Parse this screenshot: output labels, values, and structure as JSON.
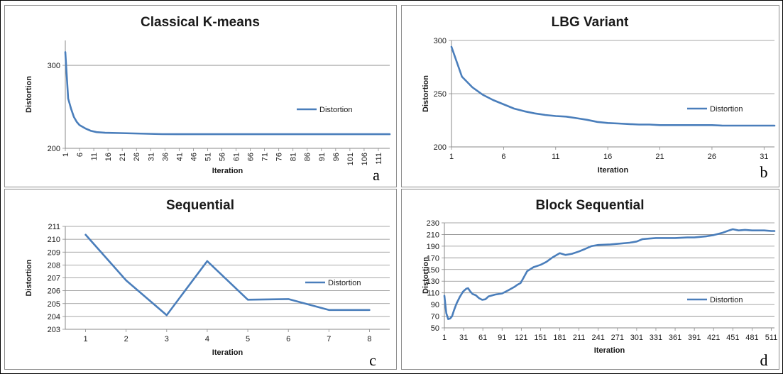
{
  "chart_data": [
    {
      "type": "line",
      "panel": "a",
      "title": "Classical K-means",
      "xlabel": "Iteration",
      "ylabel": "Distortion",
      "y_ticks": [
        "300",
        "200"
      ],
      "x_tick_labels": [
        "1",
        "6",
        "11",
        "16",
        "21",
        "26",
        "31",
        "36",
        "41",
        "46",
        "51",
        "56",
        "61",
        "66",
        "71",
        "76",
        "81",
        "86",
        "91",
        "96",
        "101",
        "106",
        "111"
      ],
      "ylim": [
        200,
        330
      ],
      "xlim": [
        1,
        115
      ],
      "grid": true,
      "legend": "right",
      "series": [
        {
          "name": "Distortion",
          "color": "#4a7ebb",
          "points": [
            [
              1,
              316
            ],
            [
              2,
              260
            ],
            [
              3,
              248
            ],
            [
              4,
              238
            ],
            [
              5,
              232
            ],
            [
              6,
              228
            ],
            [
              8,
              224
            ],
            [
              10,
              221
            ],
            [
              12,
              219.5
            ],
            [
              15,
              218.7
            ],
            [
              20,
              218.4
            ],
            [
              25,
              218
            ],
            [
              30,
              217.5
            ],
            [
              35,
              217.1
            ],
            [
              40,
              217
            ],
            [
              60,
              217
            ],
            [
              80,
              217
            ],
            [
              100,
              217
            ],
            [
              115,
              217
            ]
          ]
        }
      ]
    },
    {
      "type": "line",
      "panel": "b",
      "title": "LBG Variant",
      "xlabel": "Iteration",
      "ylabel": "Distortion",
      "y_ticks": [
        "300",
        "250",
        "200"
      ],
      "x_tick_labels": [
        "1",
        "6",
        "11",
        "16",
        "21",
        "26",
        "31"
      ],
      "ylim": [
        200,
        300
      ],
      "xlim": [
        1,
        32
      ],
      "grid": true,
      "legend": "right",
      "series": [
        {
          "name": "Distortion",
          "color": "#4a7ebb",
          "points": [
            [
              1,
              294
            ],
            [
              2,
              266
            ],
            [
              3,
              256
            ],
            [
              4,
              249
            ],
            [
              5,
              244
            ],
            [
              6,
              240
            ],
            [
              7,
              236
            ],
            [
              8,
              233.5
            ],
            [
              9,
              231.5
            ],
            [
              10,
              230
            ],
            [
              11,
              229
            ],
            [
              12,
              228.5
            ],
            [
              13,
              227
            ],
            [
              14,
              225.5
            ],
            [
              15,
              223.5
            ],
            [
              16,
              222.5
            ],
            [
              17,
              222
            ],
            [
              18,
              221.5
            ],
            [
              19,
              221
            ],
            [
              20,
              221
            ],
            [
              21,
              220.5
            ],
            [
              22,
              220.5
            ],
            [
              23,
              220.5
            ],
            [
              24,
              220.5
            ],
            [
              25,
              220.5
            ],
            [
              26,
              220.5
            ],
            [
              27,
              220
            ],
            [
              28,
              220
            ],
            [
              29,
              220
            ],
            [
              30,
              220
            ],
            [
              31,
              220
            ],
            [
              32,
              220
            ]
          ]
        }
      ]
    },
    {
      "type": "line",
      "panel": "c",
      "title": "Sequential",
      "xlabel": "Iteration",
      "ylabel": "Distortion",
      "y_ticks": [
        "211",
        "210",
        "209",
        "208",
        "207",
        "206",
        "205",
        "204",
        "203"
      ],
      "x_tick_labels": [
        "1",
        "2",
        "3",
        "4",
        "5",
        "6",
        "7",
        "8"
      ],
      "ylim": [
        203,
        211
      ],
      "xlim": [
        0.5,
        8.5
      ],
      "grid": true,
      "legend": "right",
      "series": [
        {
          "name": "Distortion",
          "color": "#4a7ebb",
          "points": [
            [
              1,
              210.35
            ],
            [
              2,
              206.8
            ],
            [
              3,
              204.1
            ],
            [
              4,
              208.3
            ],
            [
              5,
              205.3
            ],
            [
              6,
              205.35
            ],
            [
              7,
              204.5
            ],
            [
              8,
              204.5
            ]
          ]
        }
      ]
    },
    {
      "type": "line",
      "panel": "d",
      "title": "Block Sequential",
      "xlabel": "Iteration",
      "ylabel": "Distortion",
      "y_ticks": [
        "230",
        "210",
        "190",
        "170",
        "150",
        "130",
        "110",
        "90",
        "70",
        "50"
      ],
      "x_tick_labels": [
        "1",
        "31",
        "61",
        "91",
        "121",
        "151",
        "181",
        "211",
        "241",
        "271",
        "301",
        "331",
        "361",
        "391",
        "421",
        "451",
        "481",
        "511"
      ],
      "ylim": [
        50,
        230
      ],
      "xlim": [
        1,
        516
      ],
      "grid": true,
      "legend": "right",
      "series": [
        {
          "name": "Distortion",
          "color": "#4a7ebb",
          "points": [
            [
              1,
              105
            ],
            [
              4,
              75
            ],
            [
              7,
              65
            ],
            [
              10,
              66
            ],
            [
              13,
              70
            ],
            [
              16,
              80
            ],
            [
              20,
              92
            ],
            [
              25,
              103
            ],
            [
              30,
              112
            ],
            [
              35,
              117
            ],
            [
              38,
              118
            ],
            [
              41,
              113
            ],
            [
              45,
              108
            ],
            [
              50,
              106
            ],
            [
              55,
              101
            ],
            [
              60,
              98
            ],
            [
              65,
              99
            ],
            [
              70,
              104
            ],
            [
              80,
              107
            ],
            [
              91,
              109
            ],
            [
              100,
              114
            ],
            [
              110,
              120
            ],
            [
              115,
              124
            ],
            [
              120,
              127
            ],
            [
              125,
              137
            ],
            [
              130,
              147
            ],
            [
              140,
              154
            ],
            [
              151,
              158
            ],
            [
              160,
              163
            ],
            [
              170,
              171
            ],
            [
              181,
              178
            ],
            [
              190,
              175
            ],
            [
              200,
              177
            ],
            [
              211,
              181
            ],
            [
              220,
              185
            ],
            [
              230,
              190
            ],
            [
              241,
              192
            ],
            [
              260,
              193
            ],
            [
              271,
              194
            ],
            [
              290,
              196
            ],
            [
              301,
              198
            ],
            [
              310,
              202
            ],
            [
              320,
              203
            ],
            [
              331,
              204
            ],
            [
              361,
              204
            ],
            [
              380,
              205
            ],
            [
              391,
              205
            ],
            [
              410,
              207
            ],
            [
              421,
              209
            ],
            [
              435,
              213
            ],
            [
              445,
              217
            ],
            [
              451,
              219
            ],
            [
              460,
              217
            ],
            [
              470,
              218
            ],
            [
              481,
              217
            ],
            [
              500,
              217
            ],
            [
              511,
              216
            ],
            [
              516,
              216
            ]
          ]
        }
      ]
    }
  ]
}
